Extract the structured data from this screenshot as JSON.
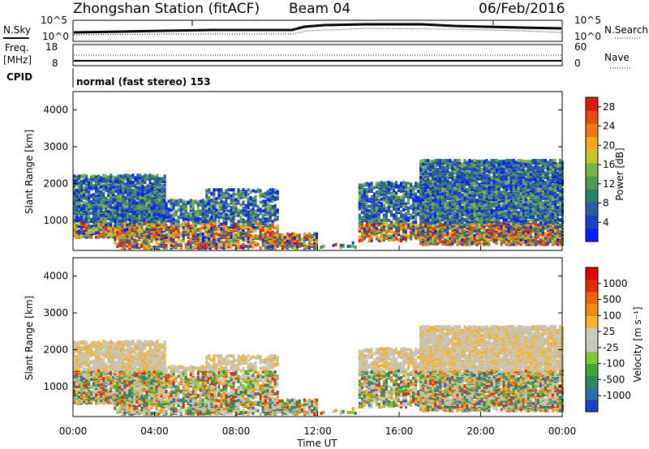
{
  "header": {
    "station": "Zhongshan Station (fitACF)",
    "beam": "Beam 04",
    "date": "06/Feb/2016",
    "cpid_label": "CPID",
    "cpid_value": "normal (fast stereo) 153"
  },
  "noise_panel": {
    "left_label": "N.Sky",
    "right_label": "N.Search",
    "left_ticks": [
      "10^5",
      "10^0"
    ],
    "right_ticks": [
      "10^5",
      "10^0"
    ]
  },
  "freq_panel": {
    "left_label_1": "Freq.",
    "left_label_2": "[MHz]",
    "right_label": "Nave",
    "left_ticks": [
      "18",
      "8"
    ],
    "right_ticks": [
      "60",
      "0"
    ]
  },
  "chart_data": [
    {
      "type": "heatmap",
      "name": "power",
      "ylabel": "Slant Range [km]",
      "yticks": [
        "1000",
        "2000",
        "3000",
        "4000"
      ],
      "ylim": [
        180,
        4500
      ],
      "xlabel": "Time UT",
      "xticks": [
        "00:00",
        "04:00",
        "08:00",
        "12:00",
        "16:00",
        "20:00",
        "00:00"
      ],
      "xlim_hours": [
        0,
        24
      ],
      "colorbar": {
        "label": "Power [dB]",
        "ticks": [
          "4",
          "8",
          "12",
          "16",
          "20",
          "24",
          "28"
        ],
        "range": [
          0,
          30
        ],
        "colors": [
          "#0020ff",
          "#1a3fc0",
          "#2f5aa8",
          "#2e7f6a",
          "#4c9a55",
          "#7fb24a",
          "#c8c424",
          "#f0a81c",
          "#f07a10",
          "#e94b08",
          "#e01a05"
        ]
      }
    },
    {
      "type": "heatmap",
      "name": "velocity",
      "ylabel": "Slant Range [km]",
      "yticks": [
        "1000",
        "2000",
        "3000",
        "4000"
      ],
      "ylim": [
        180,
        4500
      ],
      "xlabel": "Time UT",
      "xticks": [
        "00:00",
        "04:00",
        "08:00",
        "12:00",
        "16:00",
        "20:00",
        "00:00"
      ],
      "xlim_hours": [
        0,
        24
      ],
      "colorbar": {
        "label": "Velocity [m s⁻¹]",
        "ticks": [
          "1000",
          "500",
          "100",
          "25",
          "-25",
          "-100",
          "-500",
          "-1000"
        ],
        "colors": [
          "#1c3fc8",
          "#2f6fa8",
          "#2e8a5c",
          "#3fa33a",
          "#7fc832",
          "#c6c6b8",
          "#c9c9bd",
          "#f2b42c",
          "#f08a10",
          "#f06008",
          "#e82a05",
          "#e00000"
        ]
      }
    }
  ]
}
